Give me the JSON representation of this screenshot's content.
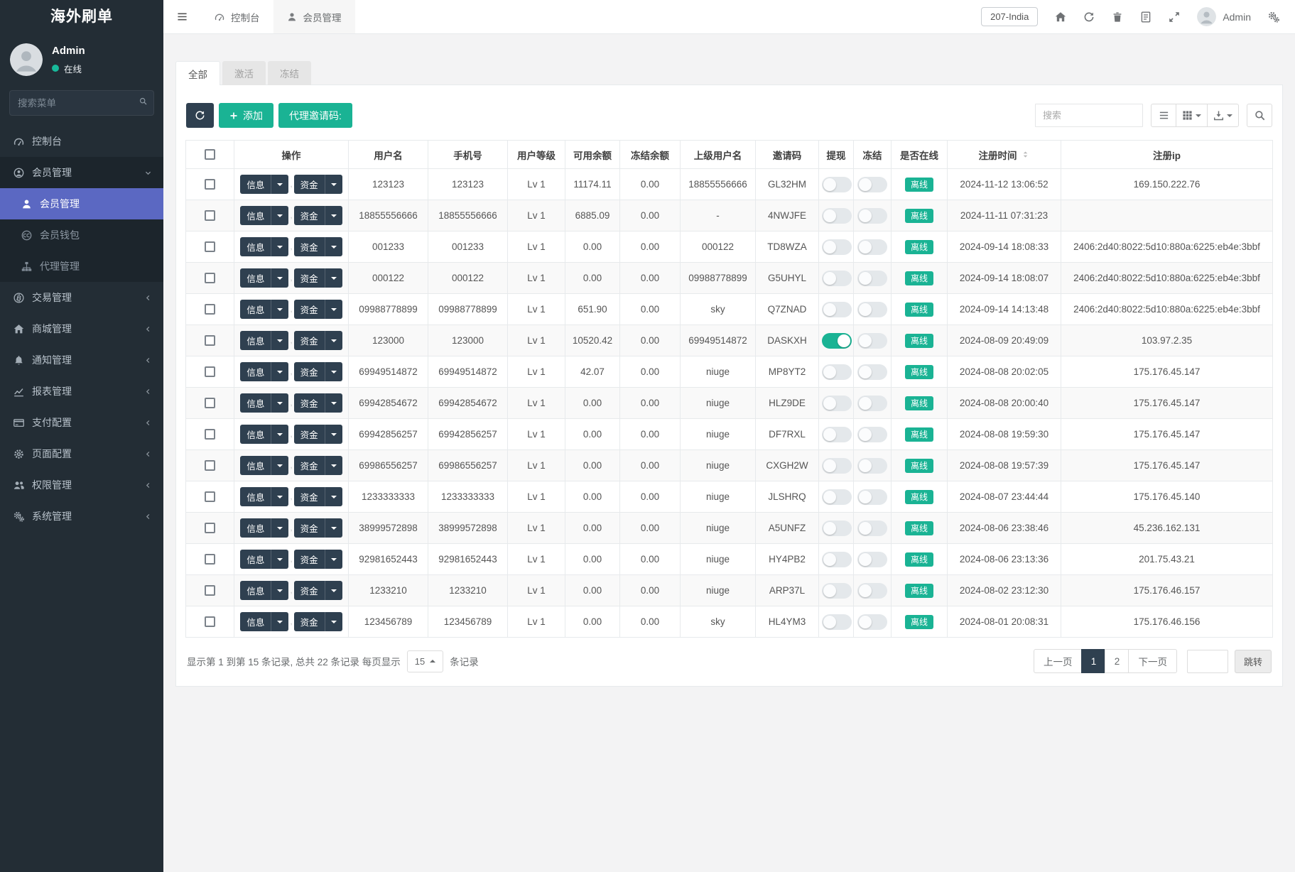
{
  "colors": {
    "accent_green": "#1ab394",
    "dark_navy": "#2f4050",
    "active_blue": "#5b68c2",
    "badge_green": "#1ab394"
  },
  "brand": {
    "title": "海外刷单"
  },
  "sidebar": {
    "user": {
      "name": "Admin",
      "status": "在线"
    },
    "search_placeholder": "搜索菜单",
    "items": [
      {
        "label": "控制台"
      },
      {
        "label": "会员管理",
        "children": [
          {
            "label": "会员管理"
          },
          {
            "label": "会员钱包"
          },
          {
            "label": "代理管理"
          }
        ]
      },
      {
        "label": "交易管理"
      },
      {
        "label": "商城管理"
      },
      {
        "label": "通知管理"
      },
      {
        "label": "报表管理"
      },
      {
        "label": "支付配置"
      },
      {
        "label": "页面配置"
      },
      {
        "label": "权限管理"
      },
      {
        "label": "系统管理"
      }
    ]
  },
  "navbar": {
    "tabs": [
      {
        "label": "控制台"
      },
      {
        "label": "会员管理"
      }
    ],
    "region": "207-India",
    "user": "Admin"
  },
  "filter_tabs": [
    {
      "label": "全部"
    },
    {
      "label": "激活"
    },
    {
      "label": "冻结"
    }
  ],
  "toolbar": {
    "add_label": "添加",
    "agent_code_label": "代理邀请码:",
    "search_placeholder": "搜索"
  },
  "table": {
    "headers": [
      "操作",
      "用户名",
      "手机号",
      "用户等级",
      "可用余额",
      "冻结余额",
      "上级用户名",
      "邀请码",
      "提现",
      "冻结",
      "是否在线",
      "注册时间",
      "注册ip"
    ],
    "row_actions": {
      "info": "信息",
      "funds": "资金",
      "separator": ","
    },
    "online_badge": "离线",
    "rows": [
      {
        "username": "123123",
        "phone": "123123",
        "level": "Lv 1",
        "available": "11174.11",
        "frozen": "0.00",
        "parent": "18855556666",
        "invite_code": "GL32HM",
        "withdraw_on": false,
        "freeze_on": false,
        "reg_time": "2024-11-12 13:06:52",
        "reg_ip": "169.150.222.76"
      },
      {
        "username": "18855556666",
        "phone": "18855556666",
        "level": "Lv 1",
        "available": "6885.09",
        "frozen": "0.00",
        "parent": "-",
        "invite_code": "4NWJFE",
        "withdraw_on": false,
        "freeze_on": false,
        "reg_time": "2024-11-11 07:31:23",
        "reg_ip": ""
      },
      {
        "username": "001233",
        "phone": "001233",
        "level": "Lv 1",
        "available": "0.00",
        "frozen": "0.00",
        "parent": "000122",
        "invite_code": "TD8WZA",
        "withdraw_on": false,
        "freeze_on": false,
        "reg_time": "2024-09-14 18:08:33",
        "reg_ip": "2406:2d40:8022:5d10:880a:6225:eb4e:3bbf"
      },
      {
        "username": "000122",
        "phone": "000122",
        "level": "Lv 1",
        "available": "0.00",
        "frozen": "0.00",
        "parent": "09988778899",
        "invite_code": "G5UHYL",
        "withdraw_on": false,
        "freeze_on": false,
        "reg_time": "2024-09-14 18:08:07",
        "reg_ip": "2406:2d40:8022:5d10:880a:6225:eb4e:3bbf"
      },
      {
        "username": "09988778899",
        "phone": "09988778899",
        "level": "Lv 1",
        "available": "651.90",
        "frozen": "0.00",
        "parent": "sky",
        "invite_code": "Q7ZNAD",
        "withdraw_on": false,
        "freeze_on": false,
        "reg_time": "2024-09-14 14:13:48",
        "reg_ip": "2406:2d40:8022:5d10:880a:6225:eb4e:3bbf"
      },
      {
        "username": "123000",
        "phone": "123000",
        "level": "Lv 1",
        "available": "10520.42",
        "frozen": "0.00",
        "parent": "69949514872",
        "invite_code": "DASKXH",
        "withdraw_on": true,
        "freeze_on": false,
        "reg_time": "2024-08-09 20:49:09",
        "reg_ip": "103.97.2.35"
      },
      {
        "username": "69949514872",
        "phone": "69949514872",
        "level": "Lv 1",
        "available": "42.07",
        "frozen": "0.00",
        "parent": "niuge",
        "invite_code": "MP8YT2",
        "withdraw_on": false,
        "freeze_on": false,
        "reg_time": "2024-08-08 20:02:05",
        "reg_ip": "175.176.45.147"
      },
      {
        "username": "69942854672",
        "phone": "69942854672",
        "level": "Lv 1",
        "available": "0.00",
        "frozen": "0.00",
        "parent": "niuge",
        "invite_code": "HLZ9DE",
        "withdraw_on": false,
        "freeze_on": false,
        "reg_time": "2024-08-08 20:00:40",
        "reg_ip": "175.176.45.147"
      },
      {
        "username": "69942856257",
        "phone": "69942856257",
        "level": "Lv 1",
        "available": "0.00",
        "frozen": "0.00",
        "parent": "niuge",
        "invite_code": "DF7RXL",
        "withdraw_on": false,
        "freeze_on": false,
        "reg_time": "2024-08-08 19:59:30",
        "reg_ip": "175.176.45.147"
      },
      {
        "username": "69986556257",
        "phone": "69986556257",
        "level": "Lv 1",
        "available": "0.00",
        "frozen": "0.00",
        "parent": "niuge",
        "invite_code": "CXGH2W",
        "withdraw_on": false,
        "freeze_on": false,
        "reg_time": "2024-08-08 19:57:39",
        "reg_ip": "175.176.45.147"
      },
      {
        "username": "1233333333",
        "phone": "1233333333",
        "level": "Lv 1",
        "available": "0.00",
        "frozen": "0.00",
        "parent": "niuge",
        "invite_code": "JLSHRQ",
        "withdraw_on": false,
        "freeze_on": false,
        "reg_time": "2024-08-07 23:44:44",
        "reg_ip": "175.176.45.140"
      },
      {
        "username": "38999572898",
        "phone": "38999572898",
        "level": "Lv 1",
        "available": "0.00",
        "frozen": "0.00",
        "parent": "niuge",
        "invite_code": "A5UNFZ",
        "withdraw_on": false,
        "freeze_on": false,
        "reg_time": "2024-08-06 23:38:46",
        "reg_ip": "45.236.162.131"
      },
      {
        "username": "92981652443",
        "phone": "92981652443",
        "level": "Lv 1",
        "available": "0.00",
        "frozen": "0.00",
        "parent": "niuge",
        "invite_code": "HY4PB2",
        "withdraw_on": false,
        "freeze_on": false,
        "reg_time": "2024-08-06 23:13:36",
        "reg_ip": "201.75.43.21"
      },
      {
        "username": "1233210",
        "phone": "1233210",
        "level": "Lv 1",
        "available": "0.00",
        "frozen": "0.00",
        "parent": "niuge",
        "invite_code": "ARP37L",
        "withdraw_on": false,
        "freeze_on": false,
        "reg_time": "2024-08-02 23:12:30",
        "reg_ip": "175.176.46.157"
      },
      {
        "username": "123456789",
        "phone": "123456789",
        "level": "Lv 1",
        "available": "0.00",
        "frozen": "0.00",
        "parent": "sky",
        "invite_code": "HL4YM3",
        "withdraw_on": false,
        "freeze_on": false,
        "reg_time": "2024-08-01 20:08:31",
        "reg_ip": "175.176.46.156"
      }
    ]
  },
  "pagination": {
    "summary_prefix": "显示第 1 到第 15 条记录, 总共 22 条记录 每页显示",
    "page_size": "15",
    "summary_suffix": "条记录",
    "prev_label": "上一页",
    "pages": [
      "1",
      "2"
    ],
    "active_page": "1",
    "next_label": "下一页",
    "jump_label": "跳转"
  }
}
